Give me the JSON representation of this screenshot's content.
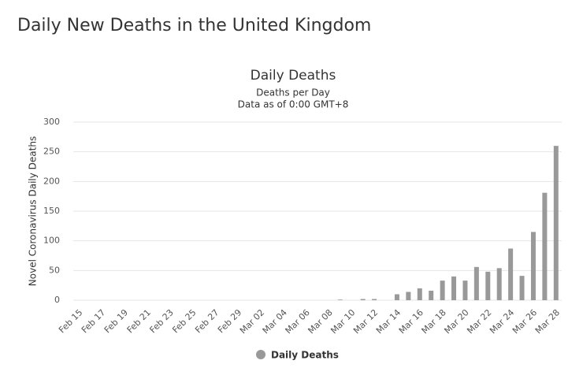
{
  "page_title": "Daily New Deaths in the United Kingdom",
  "chart_data": {
    "type": "bar",
    "title": "Daily Deaths",
    "subtitle": [
      "Deaths per Day",
      "Data as of 0:00 GMT+8"
    ],
    "y_label": "Novel Coronavirus Daily Deaths",
    "categories": [
      "Feb 15",
      null,
      "Feb 17",
      null,
      "Feb 19",
      null,
      "Feb 21",
      null,
      "Feb 23",
      null,
      "Feb 25",
      null,
      "Feb 27",
      null,
      "Feb 29",
      null,
      "Mar 02",
      null,
      "Mar 04",
      null,
      "Mar 06",
      null,
      "Mar 08",
      null,
      "Mar 10",
      null,
      "Mar 12",
      null,
      "Mar 14",
      null,
      "Mar 16",
      null,
      "Mar 18",
      null,
      "Mar 20",
      null,
      "Mar 22",
      null,
      "Mar 24",
      null,
      "Mar 26",
      null,
      "Mar 28"
    ],
    "series": [
      {
        "name": "Daily Deaths",
        "color": "#999999",
        "values": [
          0,
          0,
          0,
          0,
          0,
          0,
          0,
          0,
          0,
          0,
          0,
          0,
          0,
          0,
          0,
          0,
          0,
          0,
          0,
          0,
          0,
          0,
          0,
          1,
          0,
          2,
          2,
          0,
          10,
          14,
          20,
          16,
          33,
          40,
          33,
          56,
          48,
          54,
          87,
          41,
          115,
          181,
          260
        ]
      }
    ],
    "ylim": [
      0,
      300
    ],
    "yticks": [
      0,
      50,
      100,
      150,
      200,
      250,
      300
    ],
    "grid": true
  }
}
